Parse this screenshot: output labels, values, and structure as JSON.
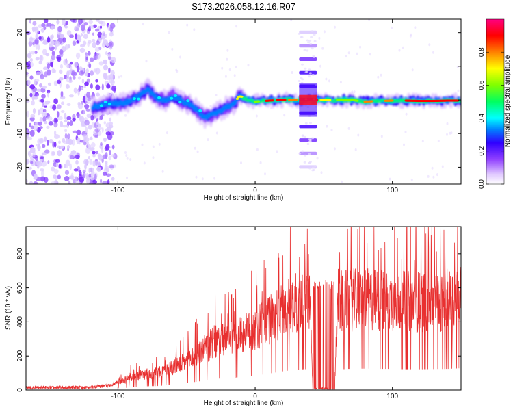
{
  "title": "S173.2026.058.12.16.R07",
  "chart_data": [
    {
      "type": "heatmap",
      "name": "spectrogram",
      "xlabel": "Height of straight line (km)",
      "ylabel": "Frequency (Hz)",
      "xlim": [
        -167,
        150
      ],
      "ylim": [
        -25,
        24
      ],
      "xticks": [
        -100,
        0,
        100
      ],
      "yticks": [
        -20,
        -10,
        0,
        10,
        20
      ],
      "colorbar": {
        "label": "Normalized spectral amplitude",
        "range": [
          0,
          1
        ],
        "ticks": [
          0.0,
          0.2,
          0.4,
          0.6,
          0.8
        ],
        "tick_labels": [
          "0.0",
          "0.2",
          "0.4",
          "0.6",
          "0.8"
        ],
        "colors": [
          "#ffffff",
          "#e0c8ff",
          "#9040ff",
          "#3000ff",
          "#0080ff",
          "#00ffff",
          "#00ff60",
          "#80ff00",
          "#ffff00",
          "#ff8000",
          "#ff0000",
          "#ff0080"
        ]
      },
      "ridge": {
        "x": [
          -115,
          -105,
          -95,
          -90,
          -85,
          -82,
          -78,
          -75,
          -70,
          -65,
          -60,
          -55,
          -50,
          -45,
          -40,
          -38,
          -35,
          -30,
          -25,
          -20,
          -15,
          -12,
          -10,
          -5,
          0,
          10,
          20,
          30,
          40,
          50,
          60,
          70,
          80,
          90,
          100,
          110,
          120,
          130,
          140,
          150
        ],
        "y": [
          -2,
          -1,
          -1,
          0,
          1,
          2,
          3,
          2,
          0,
          0,
          1,
          0,
          -1,
          -2,
          -4,
          -5,
          -5,
          -4,
          -3,
          -2,
          -1,
          1,
          1,
          0,
          -0.5,
          -0.2,
          0,
          0,
          0,
          0,
          0,
          0,
          -0.5,
          -0.3,
          -0.2,
          -0.2,
          -0.3,
          -0.3,
          -0.2,
          -0.2
        ]
      },
      "noise_region_x": [
        -167,
        -102
      ],
      "harmonic_band": {
        "x_range": [
          32,
          45
        ],
        "frequencies": [
          -20,
          -16,
          -12,
          -8,
          -4,
          0,
          4,
          8,
          12,
          16,
          20
        ]
      }
    },
    {
      "type": "line",
      "name": "snr",
      "xlabel": "Height of straight line (km)",
      "ylabel": "SNR (10 * v/v)",
      "xlim": [
        -167,
        150
      ],
      "ylim": [
        0,
        960
      ],
      "xticks": [
        -100,
        0,
        100
      ],
      "yticks": [
        0,
        200,
        400,
        600,
        800
      ],
      "color": "#e83030",
      "envelope": {
        "x": [
          -167,
          -120,
          -105,
          -95,
          -90,
          -80,
          -70,
          -60,
          -50,
          -40,
          -30,
          -20,
          -10,
          0,
          10,
          20,
          30,
          40,
          42,
          50,
          58,
          60,
          70,
          80,
          90,
          100,
          110,
          120,
          130,
          140,
          150
        ],
        "y": [
          15,
          15,
          30,
          70,
          90,
          110,
          120,
          160,
          200,
          260,
          330,
          350,
          380,
          420,
          480,
          550,
          600,
          620,
          5,
          5,
          5,
          620,
          620,
          630,
          620,
          620,
          610,
          610,
          615,
          620,
          640
        ]
      },
      "dropout_x": [
        42,
        58
      ]
    }
  ]
}
